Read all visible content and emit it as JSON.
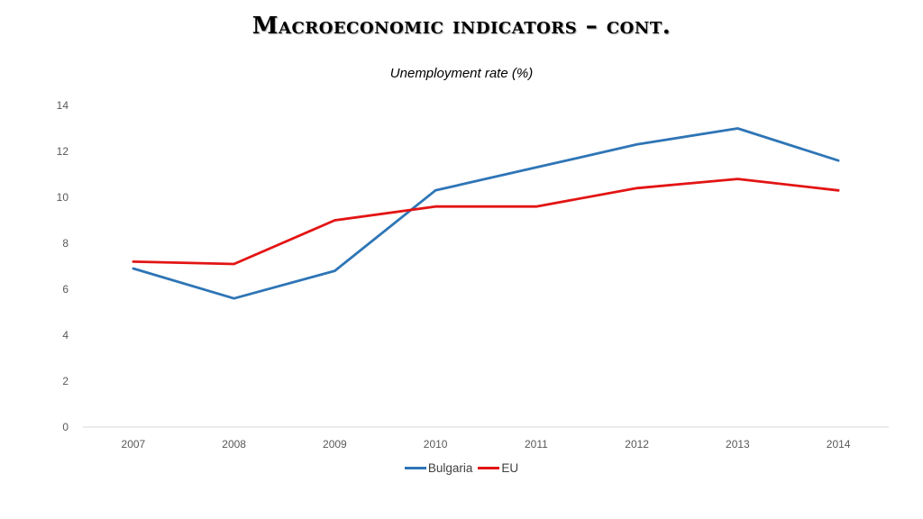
{
  "slide": {
    "title": "Macroeconomic indicators – cont."
  },
  "chart_data": {
    "type": "line",
    "title": "Unemployment rate (%)",
    "xlabel": "",
    "ylabel": "",
    "categories": [
      "2007",
      "2008",
      "2009",
      "2010",
      "2011",
      "2012",
      "2013",
      "2014"
    ],
    "ylim": [
      0,
      14
    ],
    "yticks": [
      0,
      2,
      4,
      6,
      8,
      10,
      12,
      14
    ],
    "grid": false,
    "legend_position": "bottom",
    "series": [
      {
        "name": "Bulgaria",
        "color": "#2E75B6",
        "values": [
          6.9,
          5.6,
          6.8,
          10.3,
          11.3,
          12.3,
          13.0,
          11.6
        ]
      },
      {
        "name": "EU",
        "color": "#E31414",
        "values": [
          7.2,
          7.1,
          9.0,
          9.6,
          9.6,
          10.4,
          10.8,
          10.3
        ]
      }
    ]
  }
}
